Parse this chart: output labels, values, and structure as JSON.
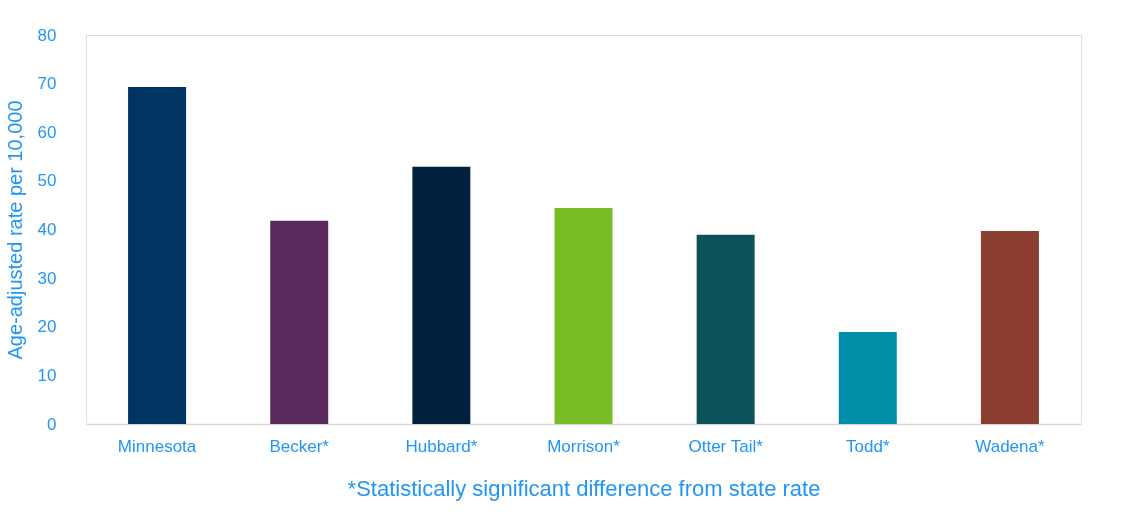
{
  "chart_data": {
    "type": "bar",
    "ylabel": "Age-adjusted  rate per 10,000",
    "categories": [
      "Minnesota",
      "Becker*",
      "Hubbard*",
      "Morrison*",
      "Otter Tail*",
      "Todd*",
      "Wadena*"
    ],
    "values": [
      69.3,
      41.8,
      52.9,
      44.4,
      38.9,
      18.9,
      39.7
    ],
    "colors": [
      "#003562",
      "#5b2a5c",
      "#00223f",
      "#78bd25",
      "#0d525a",
      "#008fa8",
      "#8b3e2f"
    ],
    "ylim": [
      0,
      80
    ],
    "yticks": [
      0,
      10,
      20,
      30,
      40,
      50,
      60,
      70,
      80
    ],
    "grid": false,
    "annotations": [
      "*Statistically significant difference from state rate"
    ]
  }
}
